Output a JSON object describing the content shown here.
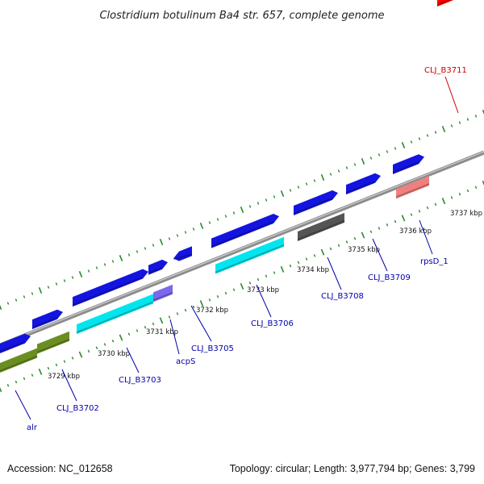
{
  "title": "Clostridium botulinum Ba4 str. 657, complete genome",
  "footer": {
    "accession": "Accession: NC_012658",
    "summary": "Topology: circular; Length: 3,977,794 bp; Genes: 3,799"
  },
  "colors": {
    "backbone": "#8c8c8c",
    "tick": "#2a8a2a",
    "label_blue": "#0000aa",
    "label_red": "#cc0000",
    "cds": "#1414e0",
    "cds_alt": "#00e5ee",
    "olive": "#6b8e23",
    "purple": "#7b68ee",
    "gray": "#555555",
    "red": "#ff0000",
    "pink": "#f08080"
  },
  "kbp_labels": [
    "3729 kbp",
    "3730 kbp",
    "3731 kbp",
    "3732 kbp",
    "3733 kbp",
    "3734 kbp",
    "3735 kbp",
    "3736 kbp",
    "3737 kbp"
  ],
  "genes": [
    {
      "label": "alr",
      "color": "label_blue"
    },
    {
      "label": "CLJ_B3702",
      "color": "label_blue"
    },
    {
      "label": "CLJ_B3703",
      "color": "label_blue"
    },
    {
      "label": "acpS",
      "color": "label_blue"
    },
    {
      "label": "CLJ_B3705",
      "color": "label_blue"
    },
    {
      "label": "CLJ_B3706",
      "color": "label_blue"
    },
    {
      "label": "CLJ_B3708",
      "color": "label_blue"
    },
    {
      "label": "CLJ_B3709",
      "color": "label_blue"
    },
    {
      "label": "rpsD_1",
      "color": "label_blue"
    },
    {
      "label": "CLJ_B3711",
      "color": "label_red"
    }
  ]
}
